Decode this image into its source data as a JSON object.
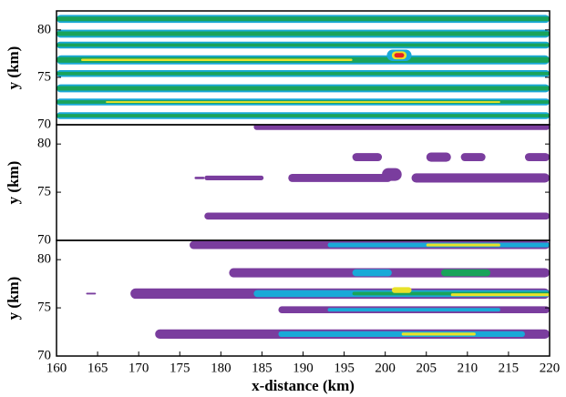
{
  "chart_data": [
    {
      "type": "contour",
      "ylabel": "y (km)",
      "xlim": [
        160,
        220
      ],
      "ylim": [
        70,
        82
      ],
      "yticks": [
        70,
        75,
        80
      ]
    },
    {
      "type": "contour",
      "ylabel": "y (km)",
      "xlim": [
        160,
        220
      ],
      "ylim": [
        70,
        82
      ],
      "yticks": [
        70,
        75,
        80
      ]
    },
    {
      "type": "contour",
      "ylabel": "y (km)",
      "xlabel": "x-distance (km)",
      "xlim": [
        160,
        220
      ],
      "ylim": [
        70,
        82
      ],
      "yticks": [
        70,
        75,
        80
      ],
      "xticks": [
        160,
        165,
        170,
        175,
        180,
        185,
        190,
        195,
        200,
        205,
        210,
        215,
        220
      ]
    }
  ]
}
